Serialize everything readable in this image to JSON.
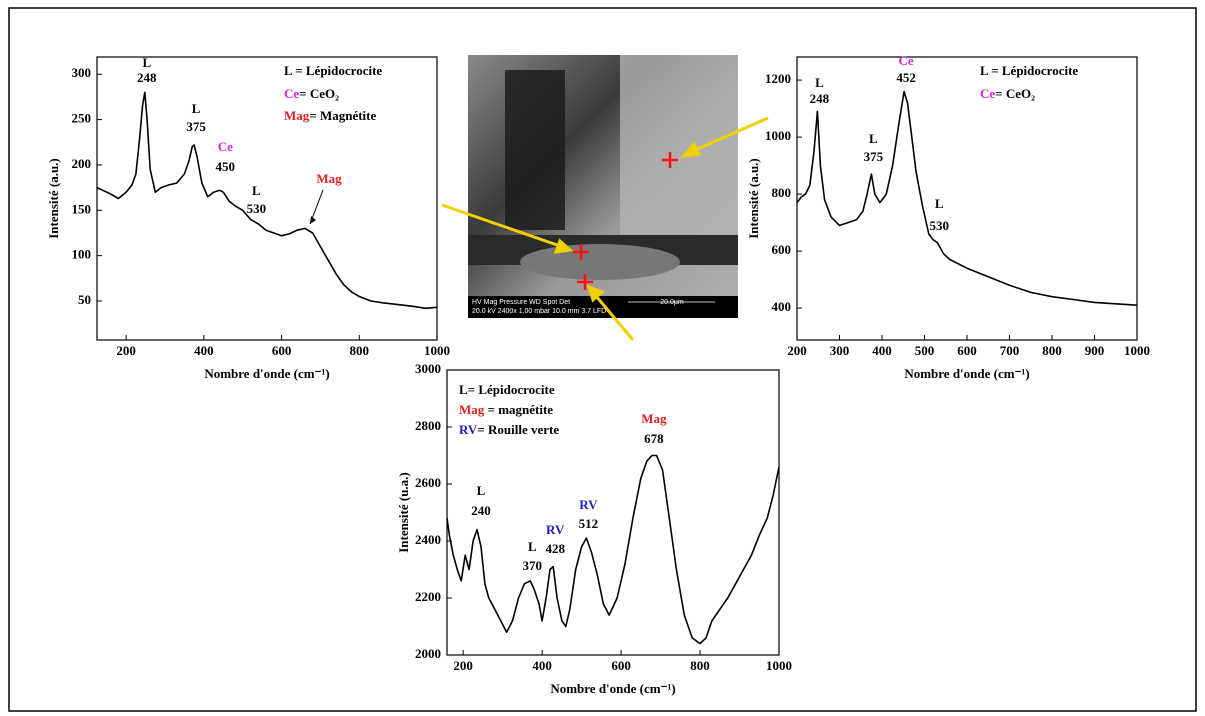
{
  "chart_data": [
    {
      "type": "line",
      "x_label": "Nombre d'onde (cm⁻¹)",
      "y_label": "Intensité (a.u.)",
      "xlim": [
        125,
        1000
      ],
      "xticks": [
        200,
        400,
        600,
        800,
        1000
      ],
      "ylim": [
        7,
        319
      ],
      "yticks": [
        50,
        100,
        150,
        200,
        250,
        300
      ],
      "legend_entries": [
        {
          "key": "L",
          "text": " = Lépidocrocite",
          "color": "#000000"
        },
        {
          "key": "Ce",
          "text": "= CeO₂",
          "color": "#e020e0"
        },
        {
          "key": "Mag",
          "text": "= Magnétite",
          "color": "#e02020"
        }
      ],
      "annotations": [
        {
          "label": "L",
          "value": 248,
          "color": "#000000"
        },
        {
          "label": "L",
          "value": 375,
          "color": "#000000"
        },
        {
          "label": "Ce",
          "value": 450,
          "color": "#e020e0"
        },
        {
          "label": "L",
          "value": 530,
          "color": "#000000"
        },
        {
          "label": "Mag",
          "color": "#e02020"
        }
      ],
      "x": [
        125,
        140,
        160,
        180,
        200,
        215,
        225,
        235,
        242,
        248,
        254,
        262,
        275,
        290,
        310,
        330,
        350,
        362,
        370,
        375,
        382,
        395,
        410,
        425,
        440,
        450,
        465,
        480,
        500,
        520,
        540,
        560,
        580,
        600,
        620,
        640,
        660,
        680,
        700,
        720,
        740,
        760,
        780,
        800,
        830,
        860,
        900,
        940,
        970,
        1000
      ],
      "series": [
        {
          "color": "#000000",
          "values": [
            175,
            172,
            168,
            163,
            170,
            178,
            190,
            230,
            265,
            280,
            250,
            195,
            170,
            175,
            178,
            180,
            190,
            205,
            220,
            222,
            210,
            180,
            165,
            170,
            172,
            170,
            160,
            155,
            150,
            140,
            135,
            128,
            125,
            122,
            124,
            128,
            130,
            125,
            110,
            95,
            80,
            68,
            60,
            55,
            50,
            48,
            46,
            44,
            42,
            43
          ]
        }
      ]
    },
    {
      "type": "line",
      "x_label": "Nombre d'onde (cm⁻¹)",
      "y_label": "Intensité (a.u.)",
      "xlim": [
        200,
        1000
      ],
      "xticks": [
        200,
        300,
        400,
        500,
        600,
        700,
        800,
        900,
        1000
      ],
      "ylim": [
        288,
        1281
      ],
      "yticks": [
        400,
        600,
        800,
        1000,
        1200
      ],
      "legend_entries": [
        {
          "key": "L",
          "text": " = Lépidocrocite",
          "color": "#000000"
        },
        {
          "key": "Ce",
          "text": "= CeO₂",
          "color": "#e020e0"
        }
      ],
      "annotations": [
        {
          "label": "L",
          "value": 248,
          "color": "#000000"
        },
        {
          "label": "L",
          "value": 375,
          "color": "#000000"
        },
        {
          "label": "Ce",
          "value": 452,
          "color": "#e020e0"
        },
        {
          "label": "L",
          "value": 530,
          "color": "#000000"
        }
      ],
      "x": [
        200,
        210,
        220,
        230,
        240,
        248,
        255,
        265,
        280,
        300,
        320,
        340,
        355,
        365,
        375,
        383,
        395,
        410,
        425,
        440,
        452,
        460,
        470,
        480,
        495,
        510,
        520,
        530,
        545,
        560,
        600,
        650,
        700,
        750,
        800,
        850,
        900,
        950,
        1000
      ],
      "series": [
        {
          "color": "#000000",
          "values": [
            770,
            790,
            800,
            830,
            950,
            1090,
            900,
            780,
            720,
            690,
            700,
            710,
            740,
            800,
            870,
            800,
            770,
            800,
            900,
            1050,
            1160,
            1120,
            1000,
            880,
            760,
            660,
            640,
            630,
            590,
            570,
            540,
            510,
            480,
            455,
            440,
            430,
            420,
            415,
            410
          ]
        }
      ]
    },
    {
      "type": "line",
      "x_label": "Nombre d'onde (cm⁻¹)",
      "y_label": "Intensité (u.a.)",
      "xlim": [
        159,
        1000
      ],
      "xticks": [
        200,
        400,
        600,
        800,
        1000
      ],
      "ylim": [
        2000,
        3000
      ],
      "yticks": [
        2000,
        2200,
        2400,
        2600,
        2800,
        3000
      ],
      "legend_entries": [
        {
          "key": "L",
          "text": "= Lépidocrocite",
          "color": "#000000"
        },
        {
          "key": "Mag",
          "text": " = magnétite",
          "color": "#e02020"
        },
        {
          "key": "RV",
          "text": "= Rouille verte",
          "color": "#2020c0"
        }
      ],
      "annotations": [
        {
          "label": "L",
          "value": 240,
          "color": "#000000"
        },
        {
          "label": "L",
          "value": 370,
          "color": "#000000"
        },
        {
          "label": "RV",
          "value": 428,
          "color": "#2020c0"
        },
        {
          "label": "RV",
          "value": 512,
          "color": "#2020c0"
        },
        {
          "label": "Mag",
          "value": 678,
          "color": "#e02020"
        }
      ],
      "x": [
        159,
        165,
        175,
        185,
        195,
        205,
        215,
        225,
        235,
        245,
        255,
        265,
        280,
        295,
        310,
        325,
        340,
        355,
        370,
        380,
        392,
        400,
        410,
        420,
        428,
        438,
        450,
        460,
        470,
        485,
        500,
        512,
        525,
        540,
        555,
        570,
        590,
        610,
        630,
        650,
        665,
        678,
        690,
        705,
        720,
        740,
        760,
        780,
        800,
        815,
        830,
        850,
        870,
        890,
        910,
        930,
        950,
        970,
        985,
        1000
      ],
      "series": [
        {
          "color": "#000000",
          "values": [
            2480,
            2420,
            2350,
            2300,
            2260,
            2350,
            2300,
            2400,
            2440,
            2380,
            2250,
            2200,
            2160,
            2120,
            2080,
            2120,
            2200,
            2250,
            2260,
            2230,
            2180,
            2120,
            2200,
            2300,
            2310,
            2200,
            2120,
            2100,
            2160,
            2300,
            2380,
            2410,
            2360,
            2280,
            2180,
            2140,
            2200,
            2320,
            2480,
            2620,
            2680,
            2700,
            2700,
            2650,
            2500,
            2300,
            2140,
            2060,
            2040,
            2060,
            2120,
            2160,
            2200,
            2250,
            2300,
            2350,
            2420,
            2480,
            2560,
            2660
          ]
        }
      ]
    }
  ],
  "sem_image": {
    "databar_header": "HV    Mag    Pressure    WD    Spot  Det",
    "databar_values": "20.0 kV 2400x 1.00 mbar 10.0 mm  3.7  LFD",
    "scale_bar": "20.0µm"
  }
}
